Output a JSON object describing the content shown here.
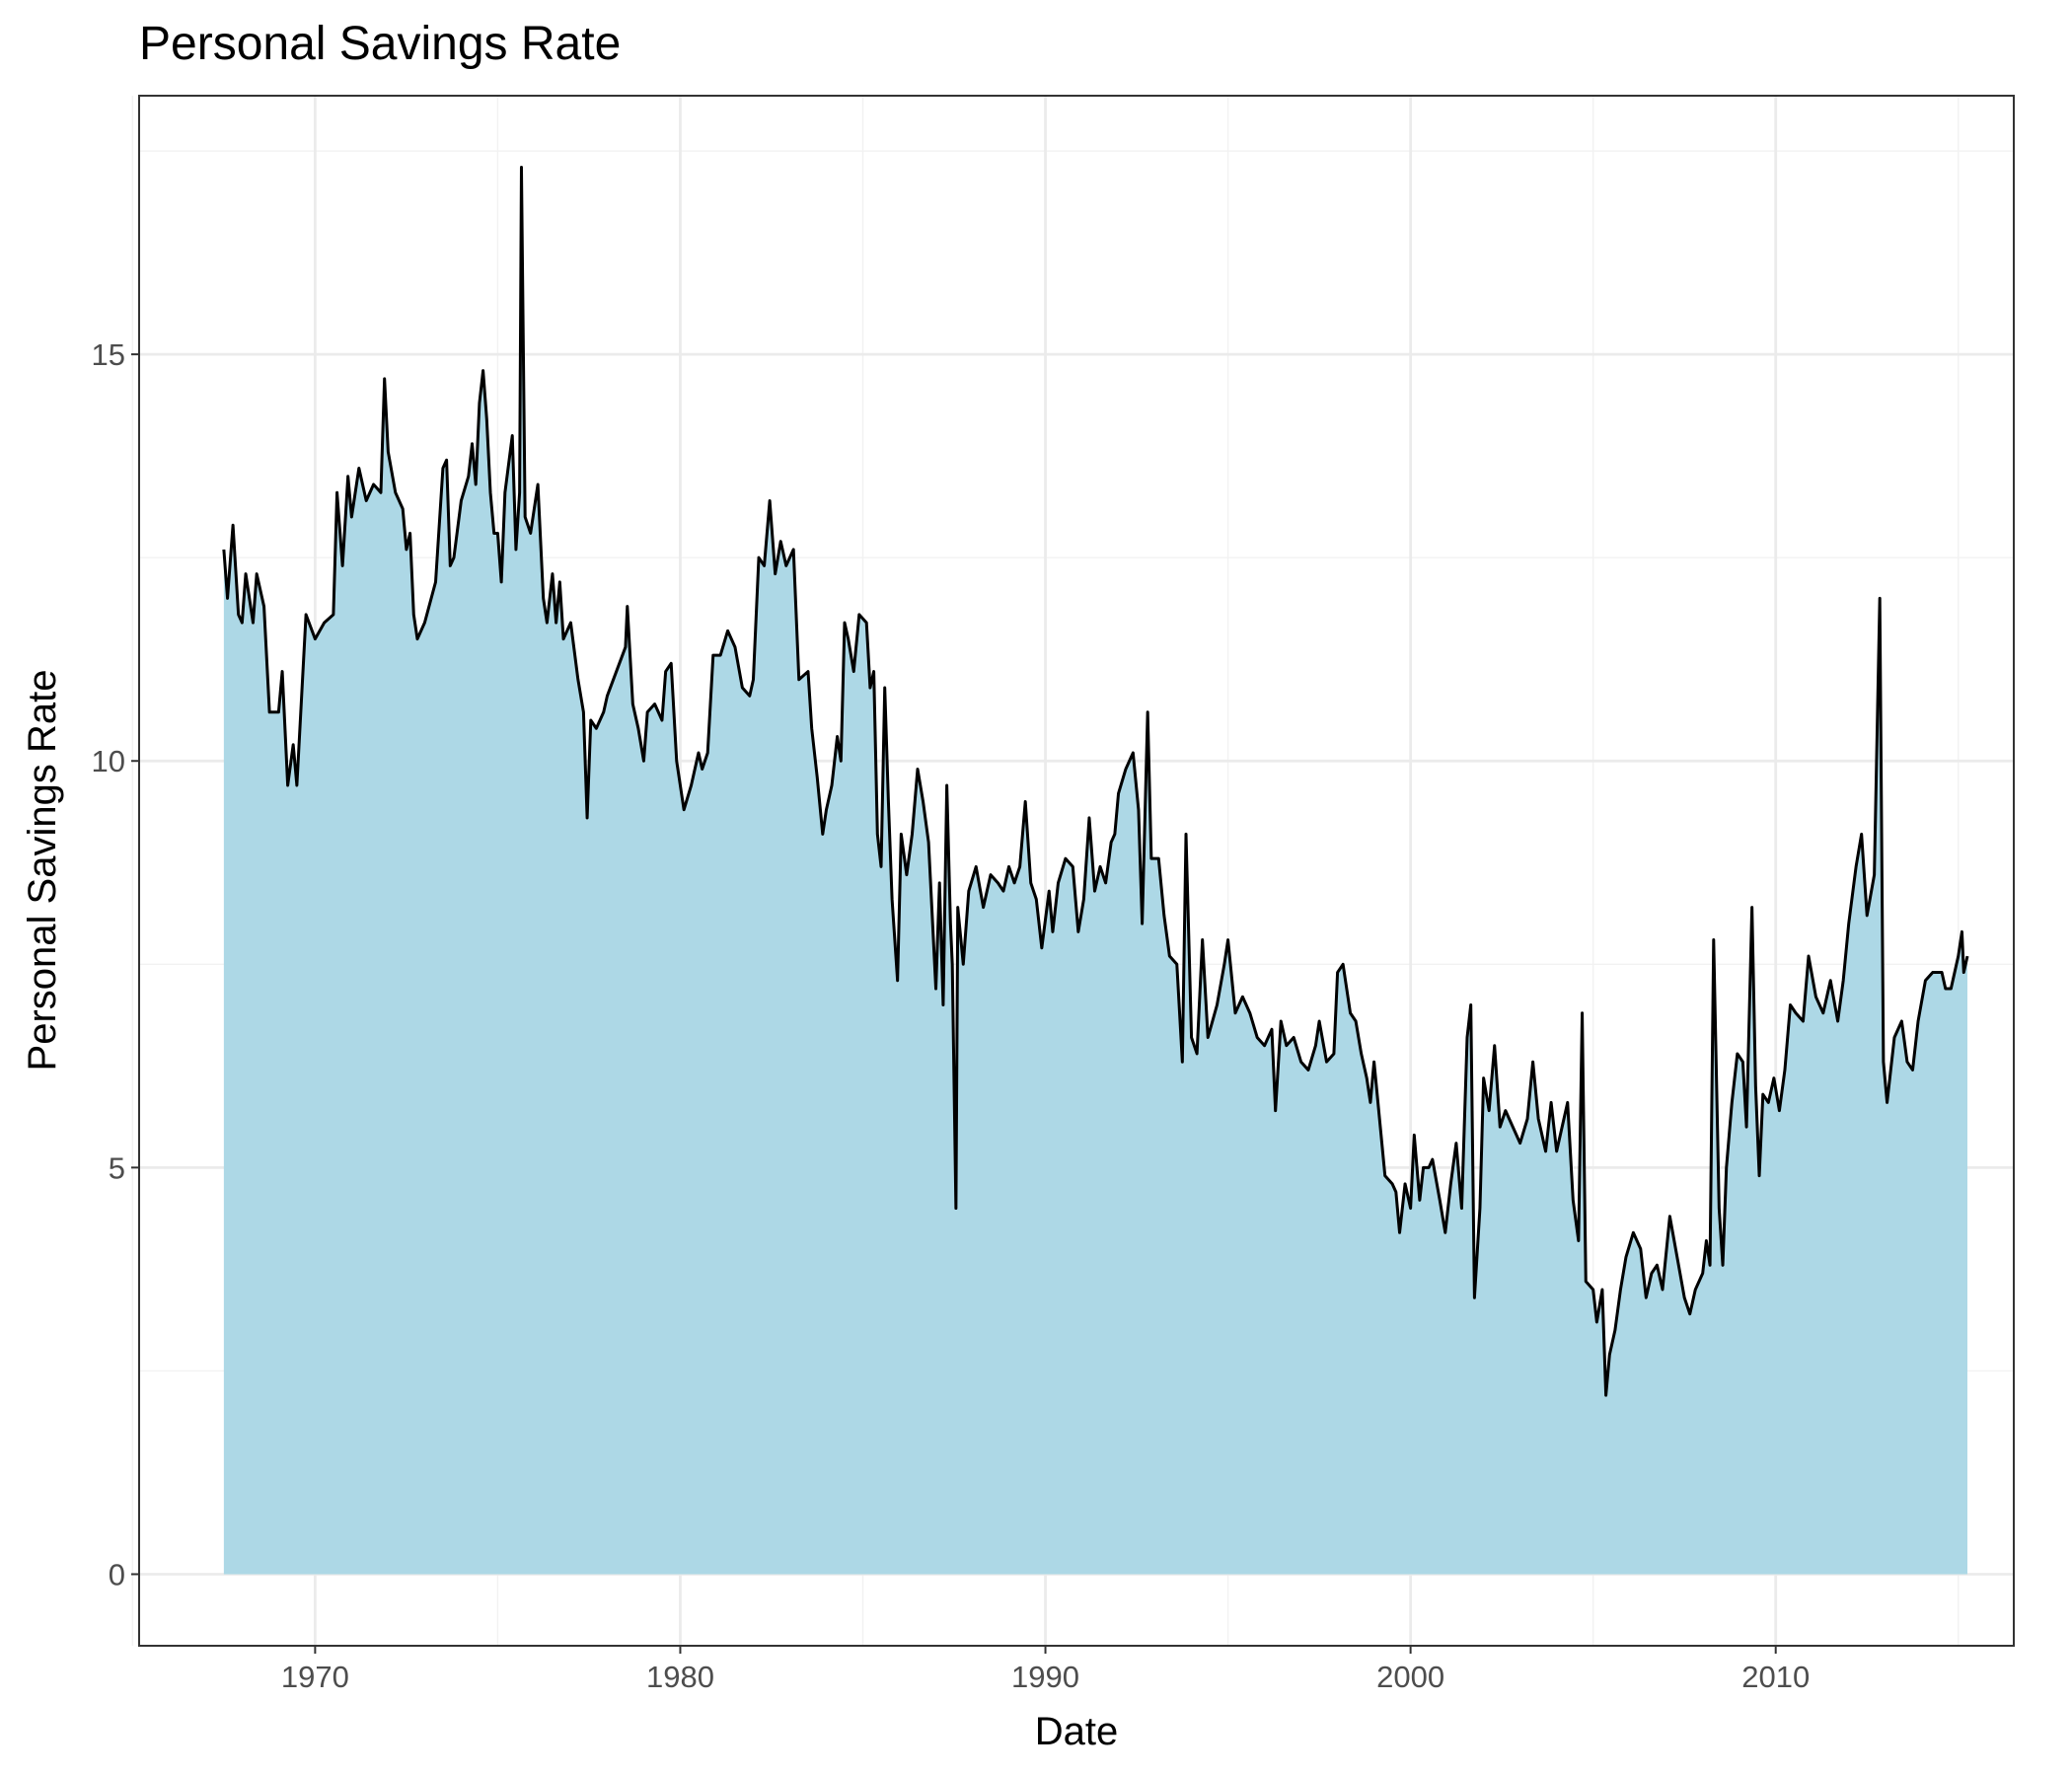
{
  "chart_data": {
    "type": "area",
    "title": "Personal Savings Rate",
    "x_label": "Date",
    "y_label": "Personal Savings Rate",
    "fill_color": "#add8e6",
    "line_color": "#000000",
    "grid": true,
    "xlim": [
      1965.18,
      2016.52
    ],
    "ylim": [
      -0.88,
      18.18
    ],
    "xticks": [
      1970,
      1980,
      1990,
      2000,
      2010
    ],
    "yticks": [
      0,
      5,
      10,
      15
    ],
    "x_minor_ticks": [
      1965,
      1975,
      1985,
      1995,
      2005,
      2015
    ],
    "y_minor_ticks": [
      2.5,
      7.5,
      12.5,
      17.5
    ],
    "x": [
      1967.5,
      1967.6,
      1967.75,
      1967.9,
      1968.0,
      1968.1,
      1968.3,
      1968.4,
      1968.6,
      1968.75,
      1969.0,
      1969.1,
      1969.25,
      1969.4,
      1969.5,
      1969.75,
      1970.0,
      1970.25,
      1970.5,
      1970.6,
      1970.75,
      1970.9,
      1971.0,
      1971.2,
      1971.4,
      1971.6,
      1971.8,
      1971.9,
      1972.0,
      1972.2,
      1972.4,
      1972.5,
      1972.6,
      1972.7,
      1972.8,
      1973.0,
      1973.3,
      1973.5,
      1973.6,
      1973.7,
      1973.8,
      1974.0,
      1974.2,
      1974.3,
      1974.4,
      1974.5,
      1974.6,
      1974.7,
      1974.8,
      1974.9,
      1975.0,
      1975.1,
      1975.2,
      1975.4,
      1975.5,
      1975.6,
      1975.65,
      1975.75,
      1975.9,
      1976.0,
      1976.1,
      1976.25,
      1976.35,
      1976.5,
      1976.6,
      1976.7,
      1976.8,
      1977.0,
      1977.2,
      1977.35,
      1977.45,
      1977.55,
      1977.7,
      1977.9,
      1978.0,
      1978.25,
      1978.5,
      1978.55,
      1978.7,
      1978.85,
      1979.0,
      1979.1,
      1979.3,
      1979.5,
      1979.6,
      1979.75,
      1979.9,
      1980.1,
      1980.3,
      1980.5,
      1980.6,
      1980.75,
      1980.9,
      1981.1,
      1981.3,
      1981.5,
      1981.7,
      1981.9,
      1982.0,
      1982.15,
      1982.3,
      1982.45,
      1982.6,
      1982.75,
      1982.9,
      1983.1,
      1983.25,
      1983.5,
      1983.6,
      1983.75,
      1983.9,
      1984.0,
      1984.15,
      1984.3,
      1984.4,
      1984.5,
      1984.6,
      1984.75,
      1984.9,
      1985.1,
      1985.2,
      1985.3,
      1985.4,
      1985.5,
      1985.6,
      1985.7,
      1985.8,
      1985.95,
      1986.05,
      1986.2,
      1986.35,
      1986.5,
      1986.65,
      1986.8,
      1987.0,
      1987.1,
      1987.2,
      1987.3,
      1987.4,
      1987.45,
      1987.55,
      1987.6,
      1987.75,
      1987.9,
      1988.1,
      1988.3,
      1988.5,
      1988.7,
      1988.85,
      1989.0,
      1989.15,
      1989.3,
      1989.45,
      1989.6,
      1989.75,
      1989.9,
      1990.1,
      1990.2,
      1990.35,
      1990.55,
      1990.75,
      1990.9,
      1991.05,
      1991.2,
      1991.35,
      1991.5,
      1991.65,
      1991.8,
      1991.9,
      1992.0,
      1992.2,
      1992.4,
      1992.55,
      1992.65,
      1992.8,
      1992.9,
      1993.1,
      1993.25,
      1993.4,
      1993.6,
      1993.75,
      1993.85,
      1994.0,
      1994.15,
      1994.3,
      1994.45,
      1994.7,
      1994.9,
      1995.0,
      1995.2,
      1995.4,
      1995.6,
      1995.8,
      1996.0,
      1996.2,
      1996.3,
      1996.45,
      1996.6,
      1996.8,
      1997.0,
      1997.2,
      1997.4,
      1997.5,
      1997.7,
      1997.9,
      1998.0,
      1998.15,
      1998.35,
      1998.5,
      1998.65,
      1998.8,
      1998.9,
      1999.0,
      1999.15,
      1999.3,
      1999.5,
      1999.6,
      1999.7,
      1999.85,
      2000.0,
      2000.1,
      2000.25,
      2000.35,
      2000.5,
      2000.6,
      2000.8,
      2000.95,
      2001.1,
      2001.25,
      2001.4,
      2001.55,
      2001.65,
      2001.75,
      2001.9,
      2002.0,
      2002.15,
      2002.3,
      2002.45,
      2002.6,
      2002.8,
      2003.0,
      2003.2,
      2003.35,
      2003.5,
      2003.7,
      2003.85,
      2004.0,
      2004.15,
      2004.3,
      2004.45,
      2004.6,
      2004.7,
      2004.8,
      2005.0,
      2005.1,
      2005.25,
      2005.35,
      2005.45,
      2005.6,
      2005.75,
      2005.9,
      2006.1,
      2006.3,
      2006.45,
      2006.6,
      2006.75,
      2006.9,
      2007.1,
      2007.3,
      2007.5,
      2007.65,
      2007.8,
      2008.0,
      2008.1,
      2008.2,
      2008.3,
      2008.45,
      2008.55,
      2008.65,
      2008.8,
      2008.95,
      2009.1,
      2009.2,
      2009.35,
      2009.45,
      2009.55,
      2009.65,
      2009.8,
      2009.95,
      2010.1,
      2010.25,
      2010.4,
      2010.55,
      2010.75,
      2010.9,
      2011.1,
      2011.3,
      2011.5,
      2011.7,
      2011.85,
      2012.0,
      2012.2,
      2012.35,
      2012.5,
      2012.7,
      2012.85,
      2012.95,
      2013.05,
      2013.25,
      2013.45,
      2013.6,
      2013.75,
      2013.9,
      2014.1,
      2014.3,
      2014.55,
      2014.65,
      2014.8,
      2015.0,
      2015.1,
      2015.15,
      2015.25
    ],
    "values": [
      12.6,
      12.0,
      12.9,
      11.8,
      11.7,
      12.3,
      11.7,
      12.3,
      11.9,
      10.6,
      10.6,
      11.1,
      9.7,
      10.2,
      9.7,
      11.8,
      11.5,
      11.7,
      11.8,
      13.3,
      12.4,
      13.5,
      13.0,
      13.6,
      13.2,
      13.4,
      13.3,
      14.7,
      13.8,
      13.3,
      13.1,
      12.6,
      12.8,
      11.8,
      11.5,
      11.7,
      12.2,
      13.6,
      13.7,
      12.4,
      12.5,
      13.2,
      13.5,
      13.9,
      13.4,
      14.4,
      14.8,
      14.2,
      13.3,
      12.8,
      12.8,
      12.2,
      13.3,
      14.0,
      12.6,
      13.3,
      17.3,
      13.0,
      12.8,
      13.1,
      13.4,
      12.0,
      11.7,
      12.3,
      11.7,
      12.2,
      11.5,
      11.7,
      11.0,
      10.6,
      9.3,
      10.5,
      10.4,
      10.6,
      10.8,
      11.1,
      11.4,
      11.9,
      10.7,
      10.4,
      10.0,
      10.6,
      10.7,
      10.5,
      11.1,
      11.2,
      10.0,
      9.4,
      9.7,
      10.1,
      9.9,
      10.1,
      11.3,
      11.3,
      11.6,
      11.4,
      10.9,
      10.8,
      11.0,
      12.5,
      12.4,
      13.2,
      12.3,
      12.7,
      12.4,
      12.6,
      11.0,
      11.1,
      10.4,
      9.8,
      9.1,
      9.4,
      9.7,
      10.3,
      10.0,
      11.7,
      11.5,
      11.1,
      11.8,
      11.7,
      10.9,
      11.1,
      9.1,
      8.7,
      10.9,
      9.5,
      8.3,
      7.3,
      9.1,
      8.6,
      9.1,
      9.9,
      9.5,
      9.0,
      7.2,
      8.5,
      7.0,
      9.7,
      8.0,
      7.5,
      4.5,
      8.2,
      7.5,
      8.4,
      8.7,
      8.2,
      8.6,
      8.5,
      8.4,
      8.7,
      8.5,
      8.7,
      9.5,
      8.5,
      8.3,
      7.7,
      8.4,
      7.9,
      8.5,
      8.8,
      8.7,
      7.9,
      8.3,
      9.3,
      8.4,
      8.7,
      8.5,
      9.0,
      9.1,
      9.6,
      9.9,
      10.1,
      9.4,
      8.0,
      10.6,
      8.8,
      8.8,
      8.1,
      7.6,
      7.5,
      6.3,
      9.1,
      6.6,
      6.4,
      7.8,
      6.6,
      7.0,
      7.5,
      7.8,
      6.9,
      7.1,
      6.9,
      6.6,
      6.5,
      6.7,
      5.7,
      6.8,
      6.5,
      6.6,
      6.3,
      6.2,
      6.5,
      6.8,
      6.3,
      6.4,
      7.4,
      7.5,
      6.9,
      6.8,
      6.4,
      6.1,
      5.8,
      6.3,
      5.6,
      4.9,
      4.8,
      4.7,
      4.2,
      4.8,
      4.5,
      5.4,
      4.6,
      5.0,
      5.0,
      5.1,
      4.6,
      4.2,
      4.8,
      5.3,
      4.5,
      6.6,
      7.0,
      3.4,
      4.5,
      6.1,
      5.7,
      6.5,
      5.5,
      5.7,
      5.5,
      5.3,
      5.6,
      6.3,
      5.6,
      5.2,
      5.8,
      5.2,
      5.5,
      5.8,
      4.6,
      4.1,
      6.9,
      3.6,
      3.5,
      3.1,
      3.5,
      2.2,
      2.7,
      3.0,
      3.5,
      3.9,
      4.2,
      4.0,
      3.4,
      3.7,
      3.8,
      3.5,
      4.4,
      3.9,
      3.4,
      3.2,
      3.5,
      3.7,
      4.1,
      3.8,
      7.8,
      4.5,
      3.8,
      5.0,
      5.8,
      6.4,
      6.3,
      5.5,
      8.2,
      6.0,
      4.9,
      5.9,
      5.8,
      6.1,
      5.7,
      6.2,
      7.0,
      6.9,
      6.8,
      7.6,
      7.1,
      6.9,
      7.3,
      6.8,
      7.3,
      8.0,
      8.7,
      9.1,
      8.1,
      8.6,
      12.0,
      6.3,
      5.8,
      6.6,
      6.8,
      6.3,
      6.2,
      6.8,
      7.3,
      7.4,
      7.4,
      7.2,
      7.2,
      7.6,
      7.9,
      7.4,
      7.6
    ]
  }
}
